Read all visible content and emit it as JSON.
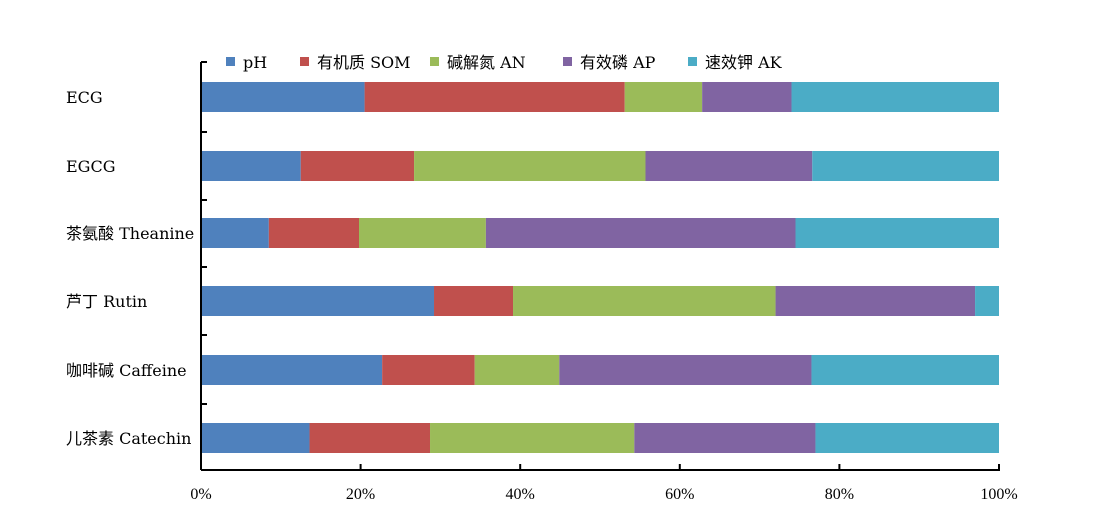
{
  "chart_data": {
    "type": "bar",
    "orientation": "horizontal",
    "stacked": "percent",
    "categories": [
      "ECG",
      "EGCG",
      "茶氨酸 Theanine",
      "芦丁 Rutin",
      "咖啡碱 Caffeine",
      "儿茶素 Catechin"
    ],
    "series": [
      {
        "name": "pH",
        "color": "#4f81bd",
        "values": [
          20.5,
          12.5,
          8.5,
          29.2,
          22.7,
          13.6
        ]
      },
      {
        "name": "有机质 SOM",
        "color": "#c0504d",
        "values": [
          32.6,
          14.2,
          11.3,
          9.9,
          11.6,
          15.1
        ]
      },
      {
        "name": "碱解氮 AN",
        "color": "#9bbb59",
        "values": [
          9.7,
          29.0,
          15.9,
          32.9,
          10.6,
          25.6
        ]
      },
      {
        "name": "有效磷 AP",
        "color": "#8064a2",
        "values": [
          11.2,
          20.9,
          38.8,
          25.0,
          31.6,
          22.7
        ]
      },
      {
        "name": "速效钾 AK",
        "color": "#4bacc6",
        "values": [
          26.0,
          23.4,
          25.5,
          3.0,
          23.5,
          23.0
        ]
      }
    ],
    "xlim": [
      0,
      100
    ],
    "xticks": [
      "0%",
      "20%",
      "40%",
      "60%",
      "80%",
      "100%"
    ],
    "legend_position": "top",
    "grid": false
  }
}
